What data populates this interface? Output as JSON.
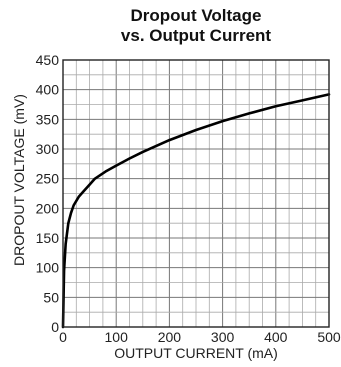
{
  "chart_data": {
    "type": "line",
    "title_lines": [
      "Dropout Voltage",
      "vs. Output Current"
    ],
    "xlabel": "OUTPUT CURRENT (mA)",
    "ylabel": "DROPOUT VOLTAGE (mV)",
    "xlim": [
      0,
      500
    ],
    "ylim": [
      0,
      450
    ],
    "x_ticks": [
      0,
      100,
      200,
      300,
      400,
      500
    ],
    "y_ticks": [
      0,
      50,
      100,
      150,
      200,
      250,
      300,
      350,
      400,
      450
    ],
    "grid": true,
    "series": [
      {
        "color": "#000000",
        "x": [
          0,
          2,
          5,
          10,
          15,
          20,
          30,
          40,
          50,
          60,
          80,
          100,
          125,
          150,
          200,
          250,
          300,
          350,
          400,
          450,
          500
        ],
        "y": [
          0,
          95,
          140,
          175,
          192,
          205,
          220,
          230,
          240,
          250,
          262,
          272,
          284,
          295,
          315,
          332,
          347,
          360,
          372,
          382,
          392
        ]
      }
    ]
  }
}
